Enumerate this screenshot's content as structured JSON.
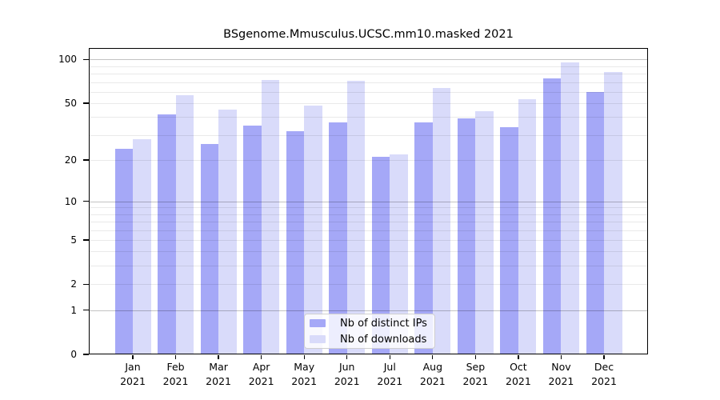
{
  "chart_data": {
    "type": "bar",
    "title": "BSgenome.Mmusculus.UCSC.mm10.masked 2021",
    "categories": [
      "Jan 2021",
      "Feb 2021",
      "Mar 2021",
      "Apr 2021",
      "May 2021",
      "Jun 2021",
      "Jul 2021",
      "Aug 2021",
      "Sep 2021",
      "Oct 2021",
      "Nov 2021",
      "Dec 2021"
    ],
    "series": [
      {
        "name": "Nb of distinct IPs",
        "color": "#a5a8f7",
        "values": [
          24,
          42,
          26,
          35,
          32,
          37,
          21,
          37,
          39,
          34,
          74,
          60
        ]
      },
      {
        "name": "Nb of downloads",
        "color": "#d9dbfa",
        "values": [
          28,
          57,
          45,
          72,
          48,
          71,
          22,
          64,
          44,
          53,
          96,
          82
        ]
      }
    ],
    "xlabel": "",
    "ylabel": "",
    "y_axis": {
      "scale": "log1p",
      "ylim": [
        0,
        120
      ],
      "tick_labels": [
        0,
        1,
        2,
        5,
        10,
        20,
        50,
        100
      ],
      "major_gridlines": [
        1,
        10,
        100
      ],
      "minor_gridlines": [
        2,
        3,
        4,
        5,
        6,
        7,
        8,
        9,
        20,
        30,
        40,
        50,
        60,
        70,
        80,
        90
      ]
    },
    "legend": {
      "position": "bottom-center",
      "items": [
        "Nb of distinct IPs",
        "Nb of downloads"
      ]
    },
    "grid": true
  }
}
